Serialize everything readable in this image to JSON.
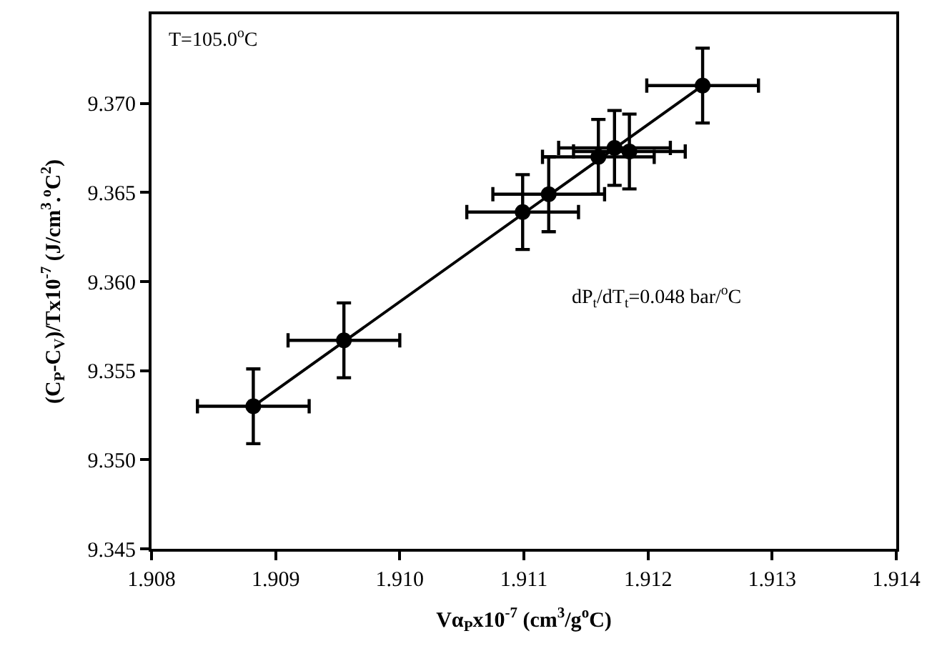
{
  "chart_data": {
    "type": "scatter",
    "xlabel": "Vα$_{P}$x10$^{-7}$ (cm$^{3}$/g$^{o}$C)",
    "ylabel": "(C$_{P}$-C$_{V}$)/Tx10$^{-7}$ (J/cm$^{3}$.$^{o}$C$^{2}$)",
    "annotations": [
      "T=105.0$^{o}$C",
      "dP$_{t}$/dT$_{t}$=0.048 bar/$^{o}$C"
    ],
    "series": [
      {
        "color": "#000000",
        "marker": "circle",
        "x": [
          1.90882,
          1.90955,
          1.91099,
          1.9112,
          1.9116,
          1.91173,
          1.91185,
          1.91244
        ],
        "values": [
          9.353,
          9.3567,
          9.3639,
          9.3649,
          9.367,
          9.3675,
          9.3673,
          9.371
        ],
        "errors": [
          0.0021,
          0.0021,
          0.0021,
          0.0021,
          0.0021,
          0.0021,
          0.0021,
          0.0021
        ],
        "xerrors": [
          0.00045,
          0.00045,
          0.00045,
          0.00045,
          0.00045,
          0.00045,
          0.00045,
          0.00045
        ]
      },
      {
        "type": "line",
        "color": "#000000",
        "line_style": "solid",
        "x": [
          1.90882,
          1.91244
        ],
        "values": [
          9.353,
          9.371
        ]
      }
    ],
    "xlim": [
      1.908,
      1.914
    ],
    "xticks": [
      {
        "value": 1.908,
        "label": "1.908"
      },
      {
        "value": 1.909,
        "label": "1.909"
      },
      {
        "value": 1.91,
        "label": "1.910"
      },
      {
        "value": 1.911,
        "label": "1.911"
      },
      {
        "value": 1.912,
        "label": "1.912"
      },
      {
        "value": 1.913,
        "label": "1.913"
      },
      {
        "value": 1.914,
        "label": "1.914"
      }
    ],
    "ylim": [
      9.345,
      9.375
    ],
    "yticks": [
      {
        "value": 9.345,
        "label": "9.345"
      },
      {
        "value": 9.35,
        "label": "9.350"
      },
      {
        "value": 9.355,
        "label": "9.355"
      },
      {
        "value": 9.36,
        "label": "9.360"
      },
      {
        "value": 9.365,
        "label": "9.365"
      },
      {
        "value": 9.37,
        "label": "9.370"
      }
    ],
    "tick_labels": "xy"
  }
}
